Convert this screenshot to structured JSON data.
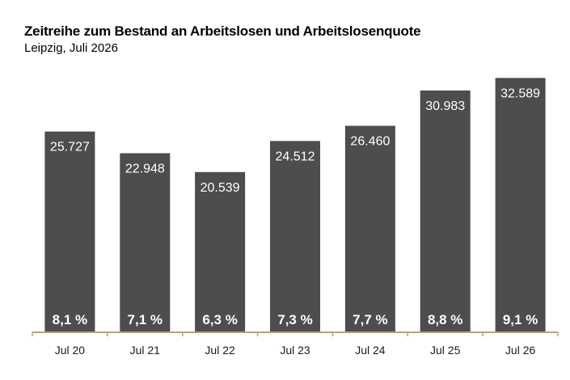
{
  "header": {
    "title": "Zeitreihe zum Bestand an Arbeitslosen und Arbeitslosenquote",
    "subtitle": "Leipzig, Juli 2026"
  },
  "colors": {
    "bar": "#4d4d4d",
    "bar_text": "#ffffff",
    "axis": "#b5a37a",
    "background": "#ffffff"
  },
  "chart_data": {
    "type": "bar",
    "title": "Zeitreihe zum Bestand an Arbeitslosen und Arbeitslosenquote",
    "subtitle": "Leipzig, Juli 2026",
    "categories": [
      "Jul 20",
      "Jul 21",
      "Jul 22",
      "Jul 23",
      "Jul 24",
      "Jul 25",
      "Jul 26"
    ],
    "series": [
      {
        "values": [
          25727,
          22948,
          20539,
          24512,
          26460,
          30983,
          32589
        ],
        "value_labels": [
          "25.727",
          "22.948",
          "20.539",
          "24.512",
          "26.460",
          "30.983",
          "32.589"
        ]
      },
      {
        "values": [
          8.1,
          7.1,
          6.3,
          7.3,
          7.7,
          8.8,
          9.1
        ],
        "value_labels": [
          "8,1 %",
          "7,1 %",
          "6,3 %",
          "7,3 %",
          "7,7 %",
          "8,8 %",
          "9,1 %"
        ]
      }
    ],
    "ylim": [
      0,
      34500
    ],
    "grid": false,
    "legend": "none"
  }
}
